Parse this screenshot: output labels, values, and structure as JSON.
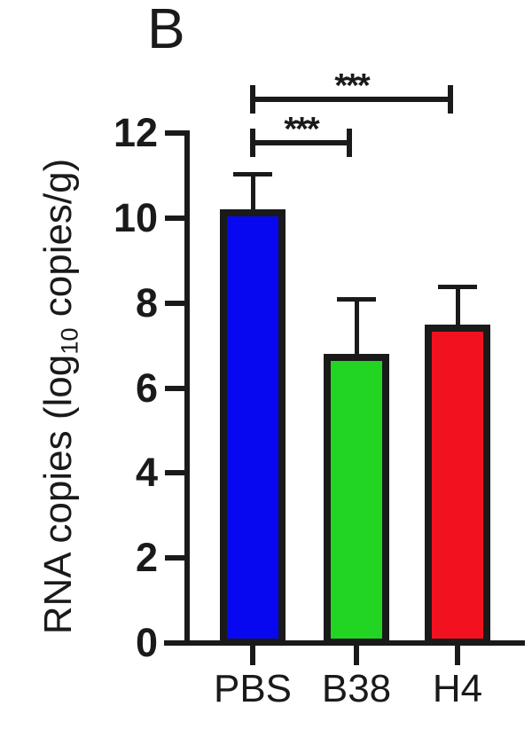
{
  "panel": {
    "label": "B"
  },
  "axes": {
    "y_title_prefix": "RNA copies (log",
    "y_title_sub": "10",
    "y_title_suffix": " copies/g)"
  },
  "chart_data": {
    "type": "bar",
    "title": "",
    "panel_label": "B",
    "categories": [
      "PBS",
      "B38",
      "H4"
    ],
    "values": [
      10.2,
      6.8,
      7.5
    ],
    "errors_upper": [
      0.85,
      1.3,
      0.9
    ],
    "bar_colors": [
      "#0808f0",
      "#23d523",
      "#f2121f"
    ],
    "xlabel": "",
    "ylabel": "RNA copies (log10 copies/g)",
    "yticks": [
      0,
      2,
      4,
      6,
      8,
      10,
      12
    ],
    "ylim": [
      0,
      12
    ],
    "grid": false,
    "legend": false,
    "significance": [
      {
        "from": "PBS",
        "to": "H4",
        "label": "***"
      },
      {
        "from": "PBS",
        "to": "B38",
        "label": "***"
      }
    ]
  },
  "colors": {
    "axis": "#1a1a1a",
    "background": "#ffffff"
  }
}
